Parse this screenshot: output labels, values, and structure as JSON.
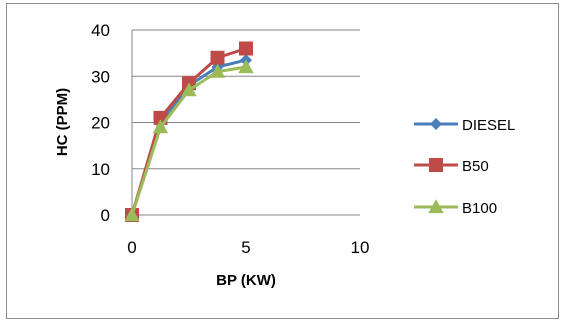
{
  "chart_data": {
    "type": "line",
    "xlabel": "BP (KW)",
    "ylabel": "HC (PPM)",
    "xlim": [
      0,
      10
    ],
    "ylim": [
      0,
      40
    ],
    "x_ticks": [
      "0",
      "5",
      "10"
    ],
    "y_ticks": [
      "0",
      "10",
      "20",
      "30",
      "40"
    ],
    "grid": "horizontal",
    "legend_placement": "right",
    "x": [
      0,
      1.25,
      2.5,
      3.75,
      5
    ],
    "series": [
      {
        "name": "DIESEL",
        "color": "#4a7ebb",
        "marker": "diamond",
        "values": [
          0,
          20,
          28,
          32,
          33.5
        ]
      },
      {
        "name": "B50",
        "color": "#be4b48",
        "marker": "square",
        "values": [
          0,
          21,
          28.5,
          34,
          36
        ]
      },
      {
        "name": "B100",
        "color": "#9bbb59",
        "marker": "triangle",
        "values": [
          0,
          19,
          27,
          31,
          32
        ]
      }
    ]
  }
}
